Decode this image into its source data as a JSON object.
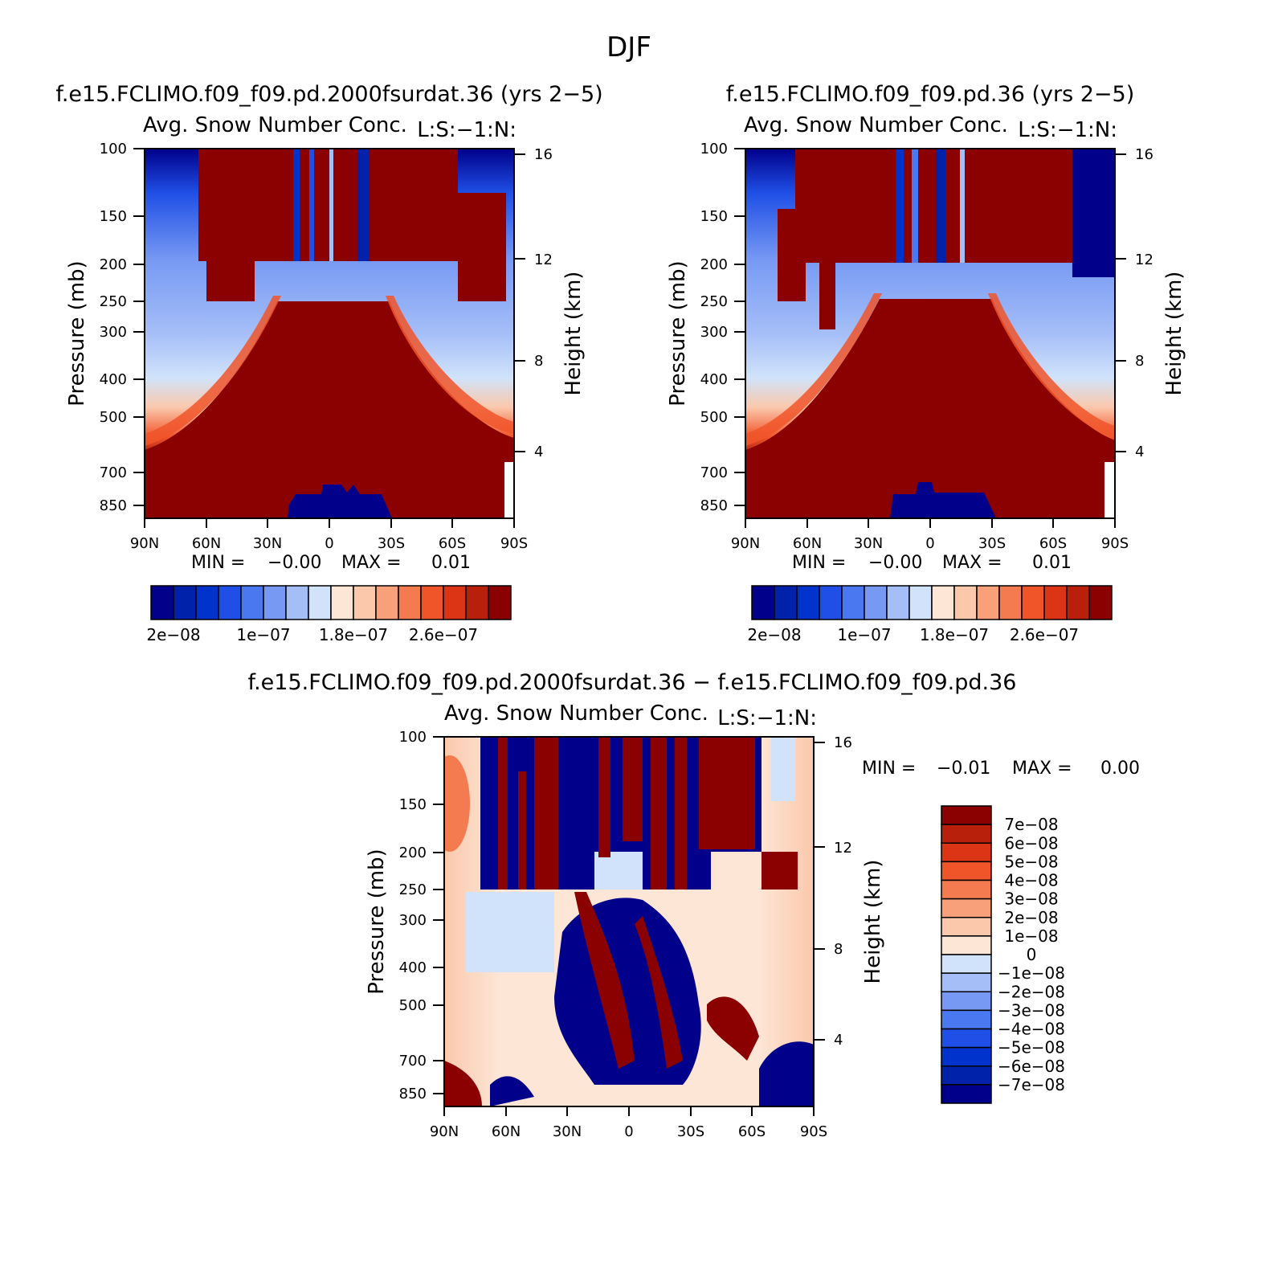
{
  "title": "DJF",
  "colors": {
    "full_scale": [
      "#00008b",
      "#0022aa",
      "#0033cc",
      "#1f4fe6",
      "#4a78f0",
      "#7799f3",
      "#a5bef8",
      "#d0e3fa",
      "#fde6d6",
      "#fbc8ac",
      "#f8a07a",
      "#f47b50",
      "#f0552a",
      "#dc3515",
      "#b8200c",
      "#8b0000"
    ],
    "diff_scale": [
      "#00008b",
      "#0022aa",
      "#0033cc",
      "#1f4fe6",
      "#4a78f0",
      "#7799f3",
      "#a5bef8",
      "#d0e3fa",
      "#fde6d6",
      "#fbc8ac",
      "#f8a07a",
      "#f47b50",
      "#f0552a",
      "#dc3515",
      "#b8200c",
      "#8b0000"
    ]
  },
  "chart_data": [
    {
      "type": "heatmap",
      "panel": "case1",
      "title": "f.e15.FCLIMO.f09_f09.pd.2000fsurdat.36 (yrs 2−5)",
      "left_string": "Avg. Snow Number Conc.",
      "right_string": "L:S:−1:N:",
      "xlabel": "",
      "ylabel": "Pressure (mb)",
      "ylabel_right": "Height (km)",
      "x_ticks": [
        "90N",
        "60N",
        "30N",
        "0",
        "30S",
        "60S",
        "90S"
      ],
      "x_range": [
        90,
        -90
      ],
      "y_ticks": [
        "100",
        "150",
        "200",
        "250",
        "300",
        "400",
        "500",
        "700",
        "850"
      ],
      "y_range_mb": [
        100,
        925
      ],
      "y_right_ticks": [
        "16",
        "12",
        "8",
        "4"
      ],
      "min_label": "MIN =",
      "min_value": "−0.00",
      "max_label": "MAX =",
      "max_value": "0.01",
      "colorbar_labels": [
        "2e−08",
        "1e−07",
        "1.8e−07",
        "2.6e−07"
      ],
      "colorbar_levels": [
        2e-08,
        4e-08,
        6e-08,
        8e-08,
        1e-07,
        1.2e-07,
        1.4e-07,
        1.6e-07,
        1.8e-07,
        2e-07,
        2.2e-07,
        2.4e-07,
        2.6e-07,
        2.8e-07,
        3e-07
      ]
    },
    {
      "type": "heatmap",
      "panel": "case2",
      "title": "f.e15.FCLIMO.f09_f09.pd.36 (yrs 2−5)",
      "left_string": "Avg. Snow Number Conc.",
      "right_string": "L:S:−1:N:",
      "xlabel": "",
      "ylabel": "Pressure (mb)",
      "ylabel_right": "Height (km)",
      "x_ticks": [
        "90N",
        "60N",
        "30N",
        "0",
        "30S",
        "60S",
        "90S"
      ],
      "x_range": [
        90,
        -90
      ],
      "y_ticks": [
        "100",
        "150",
        "200",
        "250",
        "300",
        "400",
        "500",
        "700",
        "850"
      ],
      "y_range_mb": [
        100,
        925
      ],
      "y_right_ticks": [
        "16",
        "12",
        "8",
        "4"
      ],
      "min_label": "MIN =",
      "min_value": "−0.00",
      "max_label": "MAX =",
      "max_value": "0.01",
      "colorbar_labels": [
        "2e−08",
        "1e−07",
        "1.8e−07",
        "2.6e−07"
      ],
      "colorbar_levels": [
        2e-08,
        4e-08,
        6e-08,
        8e-08,
        1e-07,
        1.2e-07,
        1.4e-07,
        1.6e-07,
        1.8e-07,
        2e-07,
        2.2e-07,
        2.4e-07,
        2.6e-07,
        2.8e-07,
        3e-07
      ]
    },
    {
      "type": "heatmap",
      "panel": "difference",
      "title": "f.e15.FCLIMO.f09_f09.pd.2000fsurdat.36 − f.e15.FCLIMO.f09_f09.pd.36",
      "left_string": "Avg. Snow Number Conc.",
      "right_string": "L:S:−1:N:",
      "xlabel": "",
      "ylabel": "Pressure (mb)",
      "ylabel_right": "Height (km)",
      "x_ticks": [
        "90N",
        "60N",
        "30N",
        "0",
        "30S",
        "60S",
        "90S"
      ],
      "x_range": [
        90,
        -90
      ],
      "y_ticks": [
        "100",
        "150",
        "200",
        "250",
        "300",
        "400",
        "500",
        "700",
        "850"
      ],
      "y_range_mb": [
        100,
        925
      ],
      "y_right_ticks": [
        "16",
        "12",
        "8",
        "4"
      ],
      "min_label": "MIN =",
      "min_value": "−0.01",
      "max_label": "MAX =",
      "max_value": "0.00",
      "colorbar_labels": [
        "7e−08",
        "6e−08",
        "5e−08",
        "4e−08",
        "3e−08",
        "2e−08",
        "1e−08",
        "0",
        "−1e−08",
        "−2e−08",
        "−3e−08",
        "−4e−08",
        "−5e−08",
        "−6e−08",
        "−7e−08"
      ],
      "colorbar_levels": [
        7e-08,
        6e-08,
        5e-08,
        4e-08,
        3e-08,
        2e-08,
        1e-08,
        0,
        -1e-08,
        -2e-08,
        -3e-08,
        -4e-08,
        -5e-08,
        -6e-08,
        -7e-08
      ]
    }
  ]
}
